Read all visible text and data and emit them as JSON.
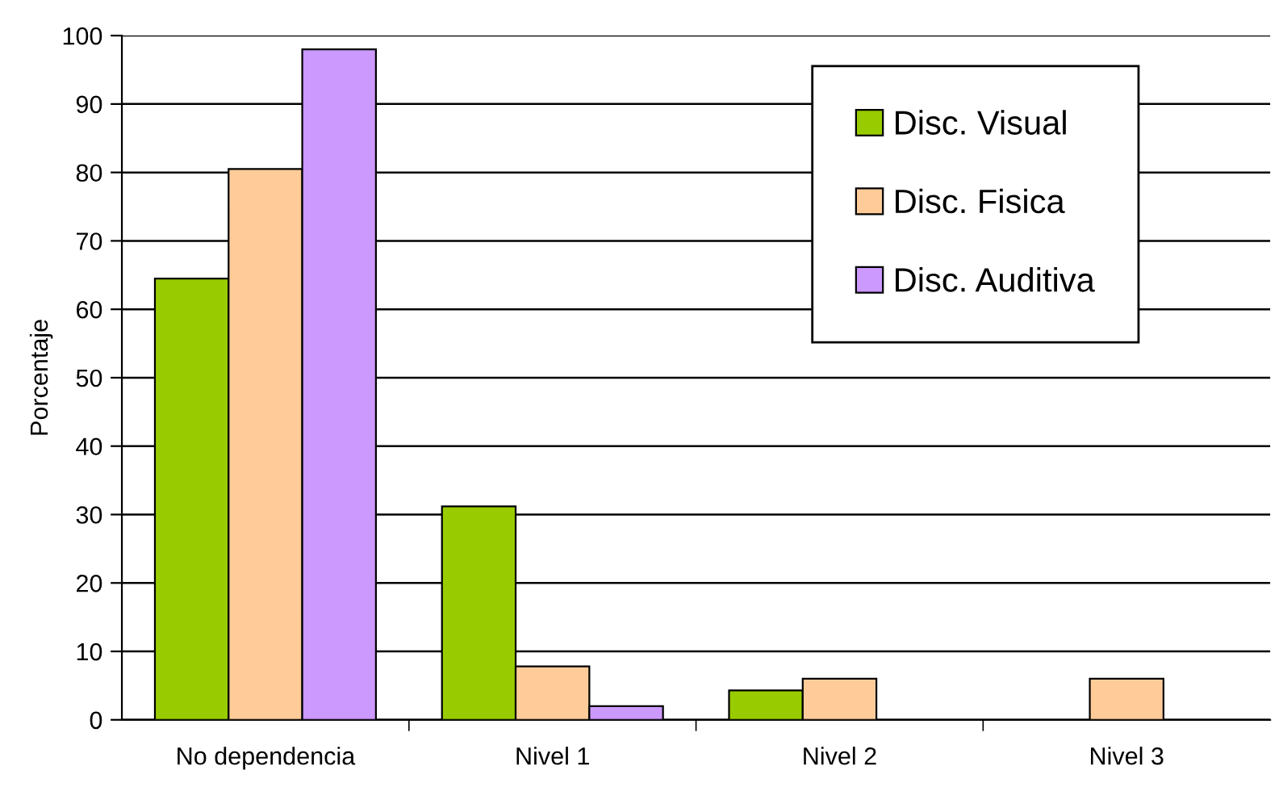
{
  "chart_data": {
    "type": "bar",
    "ylabel": "Porcentaje",
    "categories": [
      "No dependencia",
      "Nivel 1",
      "Nivel 2",
      "Nivel 3"
    ],
    "series": [
      {
        "name": "Disc. Visual",
        "color": "#99cc00",
        "values": [
          64.5,
          31.2,
          4.3,
          null
        ]
      },
      {
        "name": "Disc. Fisica",
        "color": "#ffcc99",
        "values": [
          80.5,
          7.8,
          6.0,
          6.0
        ]
      },
      {
        "name": "Disc. Auditiva",
        "color": "#cc99ff",
        "values": [
          98,
          2.0,
          null,
          null
        ]
      }
    ],
    "ylim": [
      0,
      100
    ],
    "yticks": [
      0,
      10,
      20,
      30,
      40,
      50,
      60,
      70,
      80,
      90,
      100
    ],
    "grid": "y",
    "legend": "top right"
  }
}
